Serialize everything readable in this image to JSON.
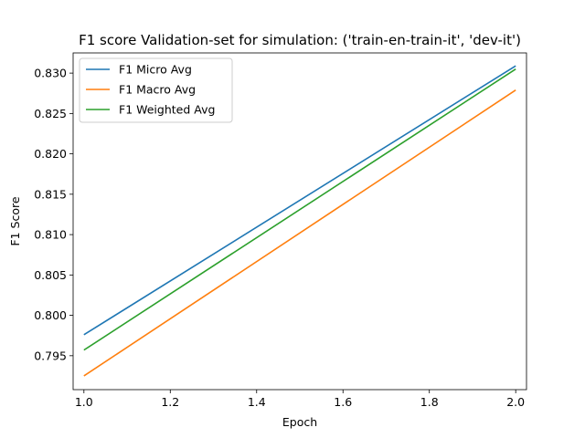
{
  "chart_data": {
    "type": "line",
    "title": "F1 score Validation-set for simulation: ('train-en-train-it', 'dev-it')",
    "xlabel": "Epoch",
    "ylabel": "F1 Score",
    "xlim": [
      0.975,
      2.025
    ],
    "ylim": [
      0.7908,
      0.8325
    ],
    "xticks": [
      1.0,
      1.2,
      1.4,
      1.6,
      1.8,
      2.0
    ],
    "xtick_labels": [
      "1.0",
      "1.2",
      "1.4",
      "1.6",
      "1.8",
      "2.0"
    ],
    "yticks": [
      0.795,
      0.8,
      0.805,
      0.81,
      0.815,
      0.82,
      0.825,
      0.83
    ],
    "ytick_labels": [
      "0.795",
      "0.800",
      "0.805",
      "0.810",
      "0.815",
      "0.820",
      "0.825",
      "0.830"
    ],
    "grid": false,
    "legend_position": "top-left",
    "x": [
      1.0,
      2.0
    ],
    "series": [
      {
        "name": "F1 Micro Avg",
        "values": [
          0.7976,
          0.8309
        ],
        "color": "#1f77b4"
      },
      {
        "name": "F1 Macro Avg",
        "values": [
          0.7925,
          0.8279
        ],
        "color": "#ff7f0e"
      },
      {
        "name": "F1 Weighted Avg",
        "values": [
          0.7957,
          0.8305
        ],
        "color": "#2ca02c"
      }
    ]
  }
}
